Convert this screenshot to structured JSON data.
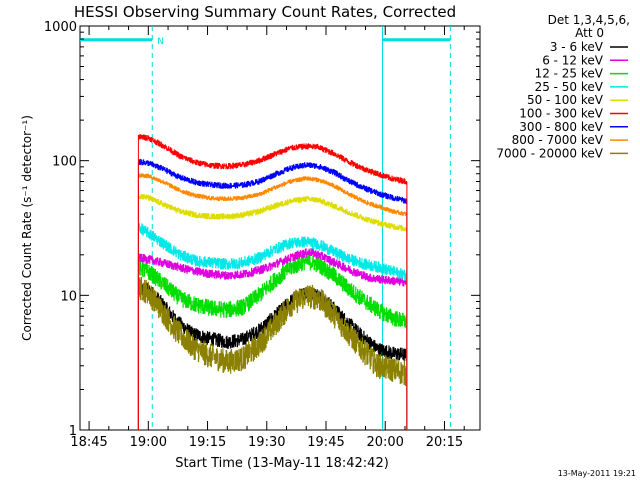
{
  "chart_data": {
    "type": "line",
    "title": "HESSI Observing Summary Count Rates, Corrected",
    "xlabel": "Start Time (13-May-11 18:42:42)",
    "ylabel": "Corrected Count Rate (s⁻¹ detector⁻¹)",
    "y_scale": "log",
    "ylim": [
      1,
      1000
    ],
    "xlim_minutes_since_midnight": [
      1122.7,
      1224
    ],
    "x_ticks": [
      {
        "label": "18:45",
        "t": 1125
      },
      {
        "label": "19:00",
        "t": 1140
      },
      {
        "label": "19:15",
        "t": 1155
      },
      {
        "label": "19:30",
        "t": 1170
      },
      {
        "label": "19:45",
        "t": 1185
      },
      {
        "label": "20:00",
        "t": 1200
      },
      {
        "label": "20:15",
        "t": 1215
      }
    ],
    "y_ticks": [
      {
        "label": "1",
        "v": 1
      },
      {
        "label": "10",
        "v": 10
      },
      {
        "label": "100",
        "v": 100
      },
      {
        "label": "1000",
        "v": 1000
      }
    ],
    "legend": {
      "placement": "right-outside",
      "header_line1": "Det 1,3,4,5,6,",
      "header_line2": "Att 0"
    },
    "series": [
      {
        "name": "3 - 6 keV",
        "color": "#000000",
        "noise": 0.05,
        "points": [
          [
            1137.5,
            11
          ],
          [
            1140,
            11
          ],
          [
            1143,
            9
          ],
          [
            1147,
            6.5
          ],
          [
            1151,
            5.2
          ],
          [
            1155,
            4.8
          ],
          [
            1160,
            4.5
          ],
          [
            1164,
            4.7
          ],
          [
            1168,
            5.5
          ],
          [
            1172,
            7
          ],
          [
            1176,
            9
          ],
          [
            1180,
            10.5
          ],
          [
            1183,
            10
          ],
          [
            1186,
            8.5
          ],
          [
            1190,
            6.5
          ],
          [
            1194,
            5
          ],
          [
            1198,
            4
          ],
          [
            1202,
            3.7
          ],
          [
            1205.5,
            3.6
          ]
        ]
      },
      {
        "name": "6 - 12 keV",
        "color": "#e000e0",
        "noise": 0.03,
        "points": [
          [
            1137.5,
            19
          ],
          [
            1140,
            18.5
          ],
          [
            1145,
            17
          ],
          [
            1150,
            15.5
          ],
          [
            1155,
            14.5
          ],
          [
            1160,
            14
          ],
          [
            1165,
            14.5
          ],
          [
            1170,
            16
          ],
          [
            1174,
            18
          ],
          [
            1178,
            20
          ],
          [
            1181,
            21
          ],
          [
            1184,
            19.5
          ],
          [
            1188,
            17
          ],
          [
            1192,
            15
          ],
          [
            1196,
            13.5
          ],
          [
            1200,
            13
          ],
          [
            1205.5,
            12.5
          ]
        ]
      },
      {
        "name": "12 - 25 keV",
        "color": "#00dd00",
        "noise": 0.06,
        "points": [
          [
            1137.5,
            16
          ],
          [
            1140,
            15
          ],
          [
            1144,
            12
          ],
          [
            1148,
            9.5
          ],
          [
            1152,
            8.5
          ],
          [
            1156,
            8
          ],
          [
            1160,
            7.8
          ],
          [
            1164,
            8.2
          ],
          [
            1168,
            10
          ],
          [
            1172,
            13
          ],
          [
            1176,
            16
          ],
          [
            1180,
            18
          ],
          [
            1183,
            17
          ],
          [
            1187,
            14
          ],
          [
            1191,
            11
          ],
          [
            1195,
            9
          ],
          [
            1199,
            7.5
          ],
          [
            1202,
            6.8
          ],
          [
            1205.5,
            6.3
          ]
        ]
      },
      {
        "name": "25 - 50 keV",
        "color": "#00e8e8",
        "noise": 0.04,
        "points": [
          [
            1137.5,
            32
          ],
          [
            1140,
            29
          ],
          [
            1144,
            24
          ],
          [
            1148,
            20
          ],
          [
            1152,
            18
          ],
          [
            1156,
            17.5
          ],
          [
            1160,
            17
          ],
          [
            1164,
            17.5
          ],
          [
            1168,
            19
          ],
          [
            1172,
            22
          ],
          [
            1176,
            24.5
          ],
          [
            1180,
            25
          ],
          [
            1183,
            24
          ],
          [
            1187,
            21
          ],
          [
            1191,
            18.5
          ],
          [
            1195,
            17
          ],
          [
            1199,
            16
          ],
          [
            1202,
            15
          ],
          [
            1205.5,
            14
          ]
        ]
      },
      {
        "name": "50 - 100 keV",
        "color": "#dddd00",
        "noise": 0.02,
        "points": [
          [
            1137.5,
            55
          ],
          [
            1140,
            53
          ],
          [
            1144,
            47
          ],
          [
            1148,
            42
          ],
          [
            1152,
            39.5
          ],
          [
            1156,
            38.5
          ],
          [
            1160,
            38.5
          ],
          [
            1164,
            39.5
          ],
          [
            1168,
            42
          ],
          [
            1172,
            46
          ],
          [
            1176,
            50
          ],
          [
            1180,
            52
          ],
          [
            1183,
            51
          ],
          [
            1187,
            46
          ],
          [
            1191,
            41
          ],
          [
            1195,
            37
          ],
          [
            1199,
            34
          ],
          [
            1202,
            32.5
          ],
          [
            1205.5,
            31
          ]
        ]
      },
      {
        "name": "100 - 300 keV",
        "color": "#ff0000",
        "noise": 0.02,
        "points": [
          [
            1137.5,
            150
          ],
          [
            1140,
            148
          ],
          [
            1144,
            128
          ],
          [
            1148,
            108
          ],
          [
            1152,
            97
          ],
          [
            1156,
            92
          ],
          [
            1160,
            91
          ],
          [
            1164,
            93
          ],
          [
            1168,
            100
          ],
          [
            1172,
            112
          ],
          [
            1176,
            124
          ],
          [
            1180,
            128
          ],
          [
            1183,
            126
          ],
          [
            1187,
            113
          ],
          [
            1191,
            97
          ],
          [
            1195,
            86
          ],
          [
            1199,
            78
          ],
          [
            1202,
            73
          ],
          [
            1205.5,
            70
          ]
        ]
      },
      {
        "name": "300 - 800 keV",
        "color": "#0000ff",
        "noise": 0.02,
        "points": [
          [
            1137.5,
            98
          ],
          [
            1140,
            96
          ],
          [
            1144,
            86
          ],
          [
            1148,
            75
          ],
          [
            1152,
            69
          ],
          [
            1156,
            66
          ],
          [
            1160,
            65
          ],
          [
            1164,
            66
          ],
          [
            1168,
            70
          ],
          [
            1172,
            79
          ],
          [
            1176,
            88
          ],
          [
            1180,
            93
          ],
          [
            1183,
            91
          ],
          [
            1187,
            82
          ],
          [
            1191,
            70
          ],
          [
            1195,
            62
          ],
          [
            1199,
            56
          ],
          [
            1202,
            53
          ],
          [
            1205.5,
            50
          ]
        ]
      },
      {
        "name": "800 - 7000 keV",
        "color": "#ff8800",
        "noise": 0.015,
        "points": [
          [
            1137.5,
            78
          ],
          [
            1140,
            77
          ],
          [
            1144,
            69
          ],
          [
            1148,
            60
          ],
          [
            1152,
            55
          ],
          [
            1156,
            52.5
          ],
          [
            1160,
            52
          ],
          [
            1164,
            53
          ],
          [
            1168,
            56
          ],
          [
            1172,
            63
          ],
          [
            1176,
            70
          ],
          [
            1180,
            74
          ],
          [
            1183,
            72
          ],
          [
            1187,
            65
          ],
          [
            1191,
            56
          ],
          [
            1195,
            49
          ],
          [
            1199,
            45
          ],
          [
            1202,
            42
          ],
          [
            1205.5,
            40
          ]
        ]
      },
      {
        "name": "7000 - 20000 keV",
        "color": "#8b8000",
        "noise": 0.09,
        "points": [
          [
            1137.5,
            11.5
          ],
          [
            1140,
            10.5
          ],
          [
            1143,
            8
          ],
          [
            1147,
            5.5
          ],
          [
            1151,
            4.2
          ],
          [
            1155,
            3.6
          ],
          [
            1160,
            3.2
          ],
          [
            1164,
            3.4
          ],
          [
            1168,
            4.3
          ],
          [
            1172,
            6
          ],
          [
            1176,
            8.5
          ],
          [
            1180,
            10
          ],
          [
            1183,
            9.5
          ],
          [
            1186,
            7.8
          ],
          [
            1190,
            5.5
          ],
          [
            1194,
            4
          ],
          [
            1198,
            3
          ],
          [
            1202,
            2.8
          ],
          [
            1205.5,
            2.6
          ]
        ]
      }
    ],
    "night_markers": [
      {
        "t": 1141,
        "label": "N"
      },
      {
        "t": 1216.5,
        "label": ""
      }
    ],
    "day_markers": [
      1199.3
    ],
    "orbit_bars": [
      {
        "t0": 1122.7,
        "t1": 1141
      },
      {
        "t0": 1199.3,
        "t1": 1216.5
      }
    ],
    "orbit_bar_value": 790,
    "footer_date": "13-May-2011 19:21"
  }
}
